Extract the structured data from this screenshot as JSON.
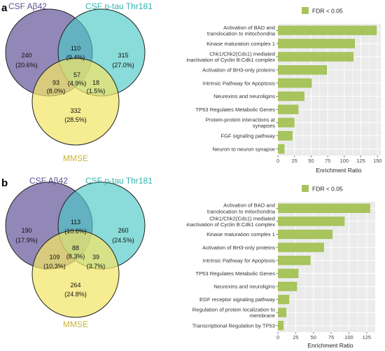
{
  "colors": {
    "set_a": "#7a6ea8",
    "set_b": "#4ccac6",
    "set_c": "#f2e467",
    "bar": "#a7c45d",
    "panel_bg": "#ebebeb",
    "grid": "#ffffff"
  },
  "panels": [
    {
      "letter": "a",
      "venn": {
        "set_labels": [
          "CSF Aβ42",
          "CSF p-tau Thr181",
          "MMSE"
        ],
        "regions": {
          "a_only": {
            "count": "240",
            "pct": "(20.6%)"
          },
          "ab": {
            "count": "110",
            "pct": "(9.4%)"
          },
          "b_only": {
            "count": "315",
            "pct": "(27.0%)"
          },
          "abc": {
            "count": "57",
            "pct": "(4.9%)"
          },
          "ac": {
            "count": "93",
            "pct": "(8.0%)"
          },
          "bc": {
            "count": "18",
            "pct": "(1.5%)"
          },
          "c_only": {
            "count": "332",
            "pct": "(28.5%)"
          }
        }
      },
      "legend": "FDR < 0.05",
      "xlabel": "Enrichment Ratio"
    },
    {
      "letter": "b",
      "venn": {
        "set_labels": [
          "CSF Aβ42",
          "CSF p-tau Thr181",
          "MMSE"
        ],
        "regions": {
          "a_only": {
            "count": "190",
            "pct": "(17.9%)"
          },
          "ab": {
            "count": "113",
            "pct": "(10.6%)"
          },
          "b_only": {
            "count": "260",
            "pct": "(24.5%)"
          },
          "abc": {
            "count": "88",
            "pct": "(8.3%)"
          },
          "ac": {
            "count": "109",
            "pct": "(10.3%)"
          },
          "bc": {
            "count": "39",
            "pct": "(3.7%)"
          },
          "c_only": {
            "count": "264",
            "pct": "(24.8%)"
          }
        }
      },
      "legend": "FDR < 0.05",
      "xlabel": "Enrichment Ratio"
    }
  ],
  "chart_data": [
    {
      "type": "bar",
      "orientation": "horizontal",
      "xlabel": "Enrichment Ratio",
      "legend": [
        "FDR < 0.05"
      ],
      "legend_position": "top",
      "grid": true,
      "xlim": [
        0,
        155
      ],
      "xticks": [
        0,
        25,
        50,
        75,
        100,
        125,
        150
      ],
      "categories": [
        [
          "Activation of BAD and",
          "translocation to mitochondria"
        ],
        [
          "Kinase maturation complex 1"
        ],
        [
          "Chk1/Chk2(Cds1) mediated",
          "inactivation of Cyclin B:Cdk1 complex"
        ],
        [
          "Activation of BH3-only proteins"
        ],
        [
          "Intrinsic Pathway for Apoptosis"
        ],
        [
          "Neurexins and neuroligins"
        ],
        [
          "TP53 Regulates Metabolic Genes"
        ],
        [
          "Protein-protein interactions at",
          "synapses"
        ],
        [
          "FGF signaling pathway"
        ],
        [
          "Neuron to neuron synapse"
        ]
      ],
      "values": [
        149,
        116,
        114,
        74,
        51,
        40,
        31,
        25,
        22,
        10
      ]
    },
    {
      "type": "bar",
      "orientation": "horizontal",
      "xlabel": "Enrichment Ratio",
      "legend": [
        "FDR < 0.05"
      ],
      "legend_position": "top",
      "grid": true,
      "xlim": [
        0,
        137
      ],
      "xticks": [
        0,
        25,
        50,
        75,
        100,
        125
      ],
      "categories": [
        [
          "Activation of BAD and",
          "translocation to mitochondria"
        ],
        [
          "Chk1/Chk2(Cds1) mediated",
          "inactivation of Cyclin B:Cdk1 complex"
        ],
        [
          "Kinase maturation complex 1"
        ],
        [
          "Activation of BH3-only proteins"
        ],
        [
          "Intrinsic Pathway for Apoptosis"
        ],
        [
          "TP53 Regulates Metabolic Genes"
        ],
        [
          "Neurexins and neuroligins"
        ],
        [
          "EGF receptor signaling pathway"
        ],
        [
          "Regulation of protein localization to",
          "membrane"
        ],
        [
          "Transcriptional Regulation by TP53"
        ]
      ],
      "values": [
        130,
        94,
        77,
        65,
        46,
        29,
        27,
        16,
        12,
        8
      ]
    }
  ]
}
